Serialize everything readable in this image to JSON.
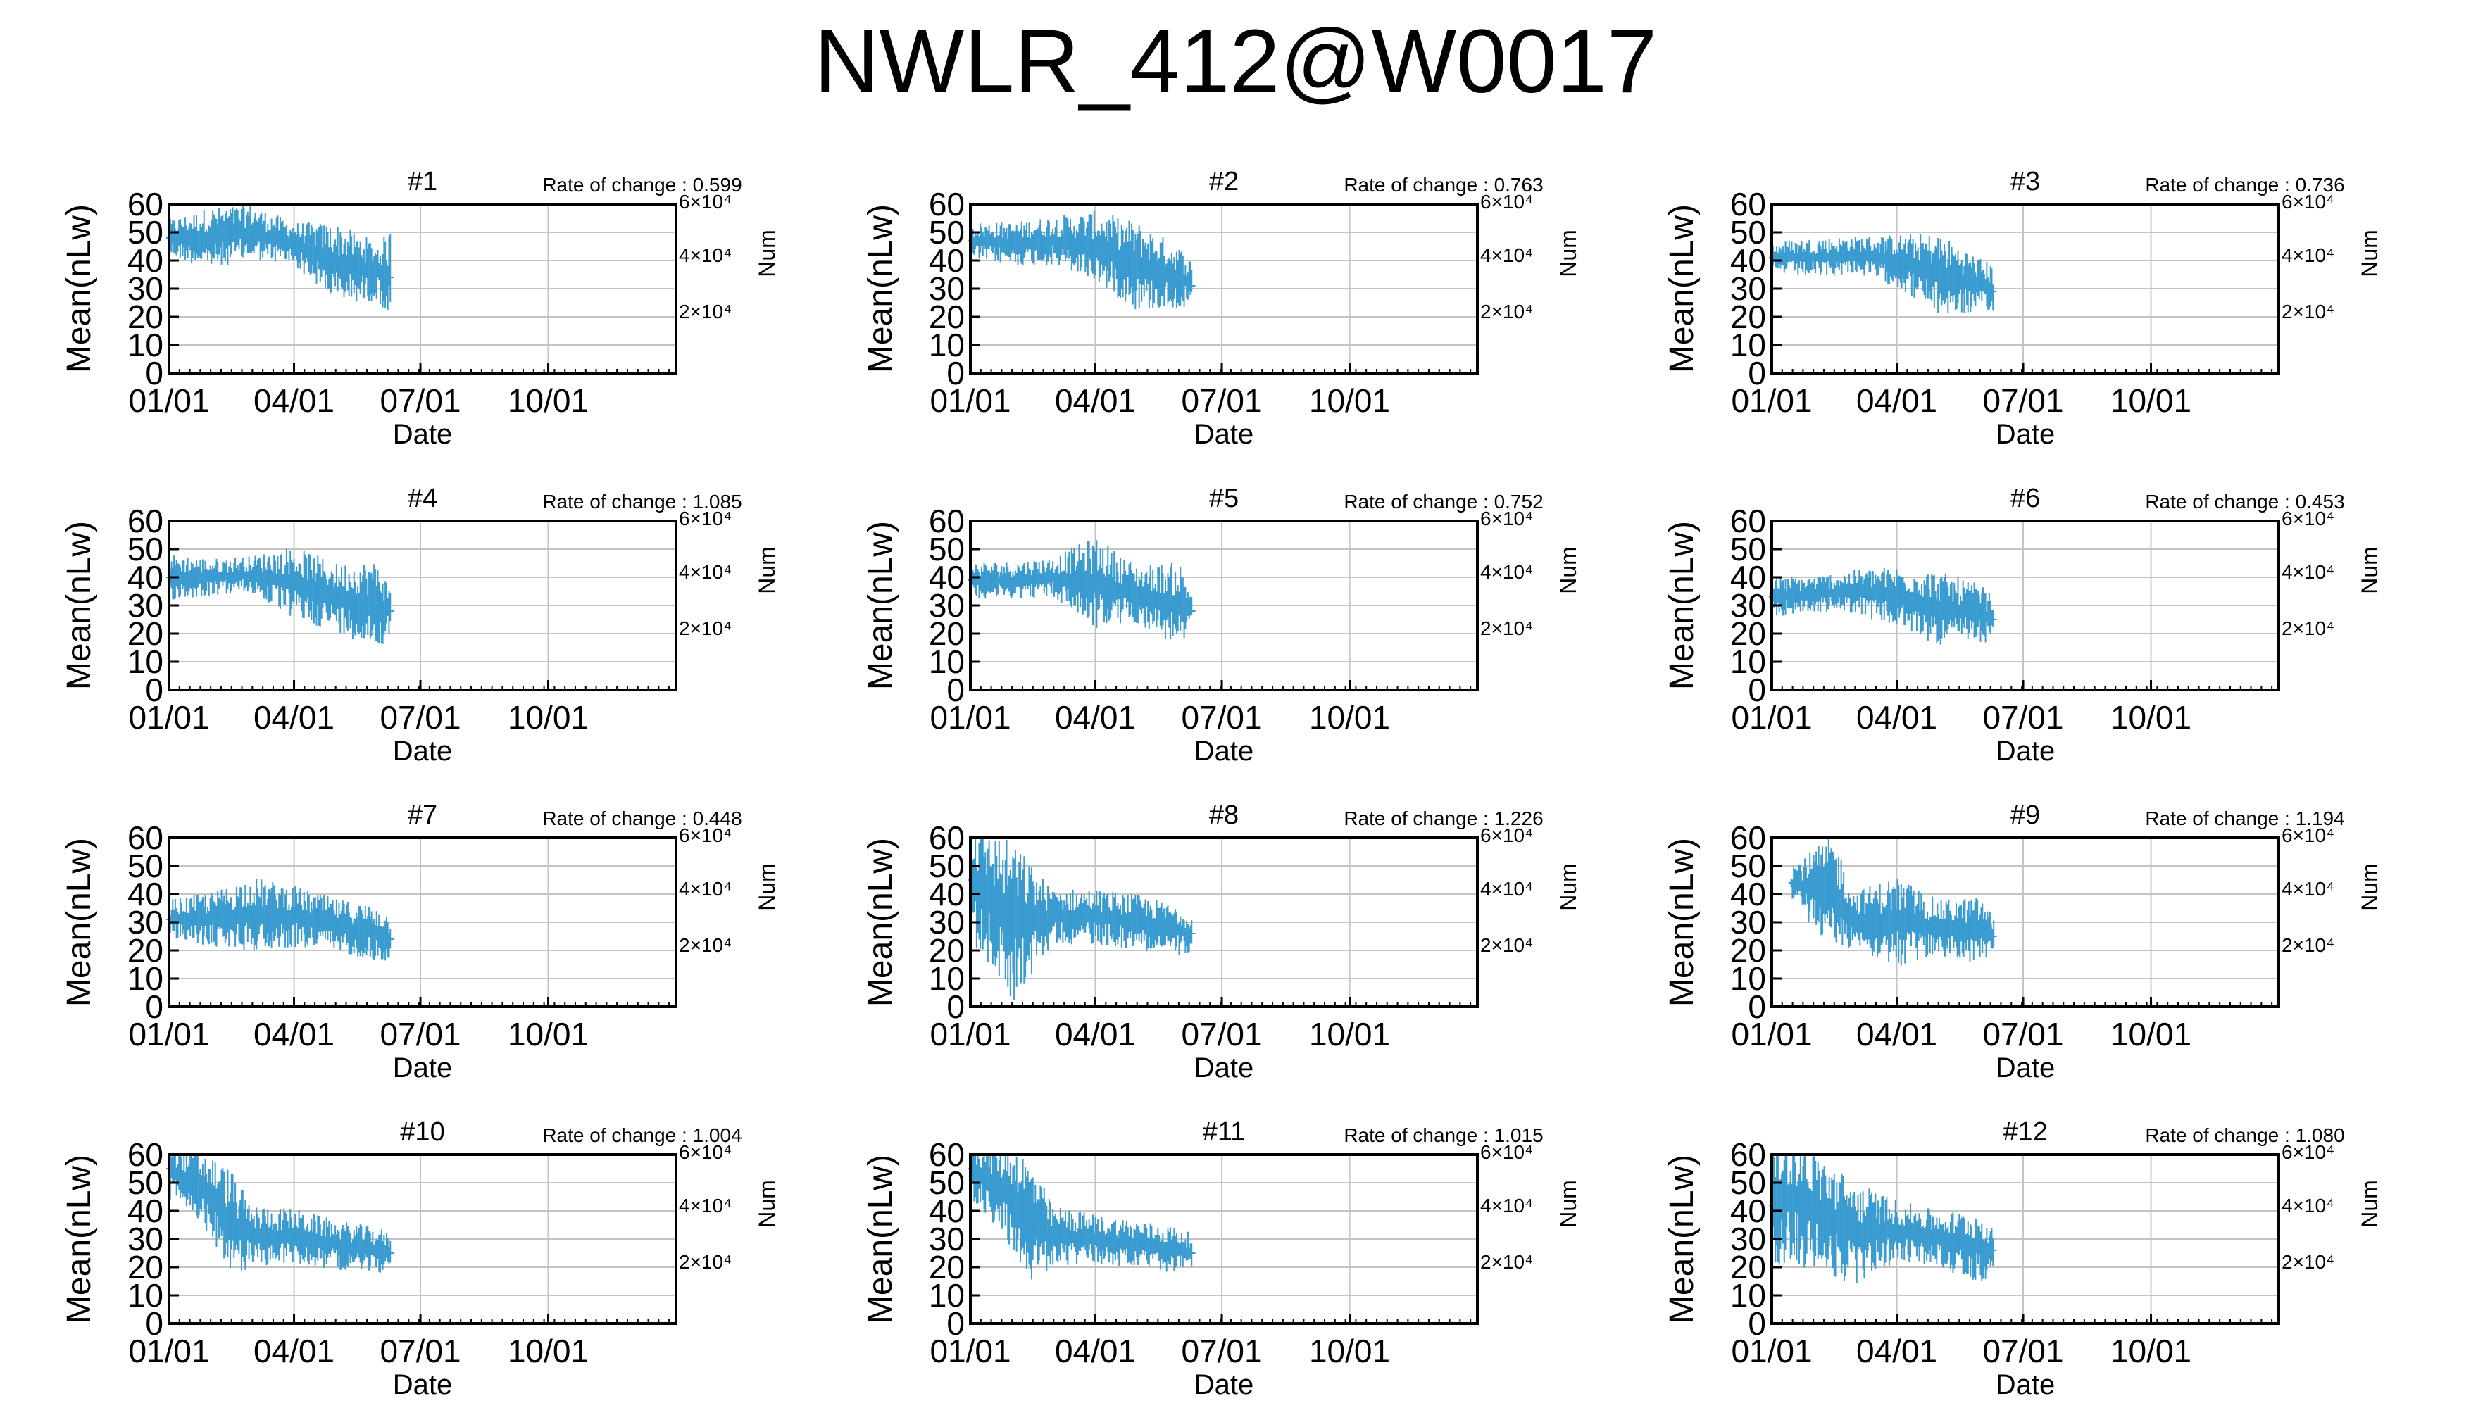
{
  "title": "NWLR_412@W0017",
  "colors": {
    "series": "#3a9bd0",
    "grid": "#c4c4c4",
    "axis": "#000000"
  },
  "chart_data": [
    {
      "type": "line",
      "title": "#1",
      "rate_label": "Rate of change : 0.599",
      "xlabel": "Date",
      "ylabel": "Mean(nLw)",
      "y2label": "Num",
      "xticks": [
        "01/01",
        "04/01",
        "07/01",
        "10/01"
      ],
      "yticks": [
        "0",
        "10",
        "20",
        "30",
        "40",
        "50",
        "60"
      ],
      "y2ticks": [
        "2×10⁴",
        "4×10⁴",
        "6×10⁴"
      ],
      "ylim": [
        0,
        60
      ],
      "grid": true,
      "series": [
        {
          "x": [
            "01/01",
            "02/01",
            "03/01",
            "04/01",
            "05/01",
            "06/01",
            "06/10"
          ],
          "values": [
            48,
            48,
            50,
            46,
            39,
            36,
            34
          ],
          "range": [
            [
              42,
              54
            ],
            [
              38,
              58
            ],
            [
              40,
              58
            ],
            [
              38,
              52
            ],
            [
              20,
              46
            ],
            [
              25,
              44
            ],
            [
              26,
              58
            ]
          ]
        }
      ]
    },
    {
      "type": "line",
      "title": "#2",
      "rate_label": "Rate of change : 0.763",
      "xlabel": "Date",
      "ylabel": "Mean(nLw)",
      "y2label": "Num",
      "xticks": [
        "01/01",
        "04/01",
        "07/01",
        "10/01"
      ],
      "yticks": [
        "0",
        "10",
        "20",
        "30",
        "40",
        "50",
        "60"
      ],
      "y2ticks": [
        "2×10⁴",
        "4×10⁴",
        "6×10⁴"
      ],
      "ylim": [
        0,
        60
      ],
      "grid": true,
      "series": [
        {
          "x": [
            "01/01",
            "02/01",
            "03/01",
            "04/01",
            "05/01",
            "06/01",
            "06/10"
          ],
          "values": [
            47,
            46,
            47,
            45,
            38,
            34,
            31
          ],
          "range": [
            [
              40,
              52
            ],
            [
              38,
              52
            ],
            [
              40,
              56
            ],
            [
              35,
              58
            ],
            [
              15,
              44
            ],
            [
              22,
              42
            ],
            [
              22,
              38
            ]
          ]
        }
      ]
    },
    {
      "type": "line",
      "title": "#3",
      "rate_label": "Rate of change : 0.736",
      "xlabel": "Date",
      "ylabel": "Mean(nLw)",
      "y2label": "Num",
      "xticks": [
        "01/01",
        "04/01",
        "07/01",
        "10/01"
      ],
      "yticks": [
        "0",
        "10",
        "20",
        "30",
        "40",
        "50",
        "60"
      ],
      "y2ticks": [
        "2×10⁴",
        "4×10⁴",
        "6×10⁴"
      ],
      "ylim": [
        0,
        60
      ],
      "grid": true,
      "series": [
        {
          "x": [
            "01/01",
            "02/01",
            "03/01",
            "04/01",
            "05/01",
            "06/01",
            "06/10"
          ],
          "values": [
            41,
            41,
            42,
            40,
            35,
            31,
            29
          ],
          "range": [
            [
              36,
              46
            ],
            [
              34,
              47
            ],
            [
              36,
              48
            ],
            [
              30,
              47
            ],
            [
              15,
              42
            ],
            [
              20,
              38
            ],
            [
              18,
              35
            ]
          ]
        }
      ]
    },
    {
      "type": "line",
      "title": "#4",
      "rate_label": "Rate of change : 1.085",
      "xlabel": "Date",
      "ylabel": "Mean(nLw)",
      "y2label": "Num",
      "xticks": [
        "01/01",
        "04/01",
        "07/01",
        "10/01"
      ],
      "yticks": [
        "0",
        "10",
        "20",
        "30",
        "40",
        "50",
        "60"
      ],
      "y2ticks": [
        "2×10⁴",
        "4×10⁴",
        "6×10⁴"
      ],
      "ylim": [
        0,
        60
      ],
      "grid": true,
      "series": [
        {
          "x": [
            "01/01",
            "02/01",
            "03/01",
            "04/01",
            "05/01",
            "06/01",
            "06/10"
          ],
          "values": [
            40,
            40,
            41,
            38,
            33,
            30,
            28
          ],
          "range": [
            [
              35,
              50
            ],
            [
              34,
              46
            ],
            [
              35,
              47
            ],
            [
              20,
              44
            ],
            [
              20,
              42
            ],
            [
              9,
              38
            ],
            [
              22,
              35
            ]
          ]
        }
      ]
    },
    {
      "type": "line",
      "title": "#5",
      "rate_label": "Rate of change : 0.752",
      "xlabel": "Date",
      "ylabel": "Mean(nLw)",
      "y2label": "Num",
      "xticks": [
        "01/01",
        "04/01",
        "07/01",
        "10/01"
      ],
      "yticks": [
        "0",
        "10",
        "20",
        "30",
        "40",
        "50",
        "60"
      ],
      "y2ticks": [
        "2×10⁴",
        "4×10⁴",
        "6×10⁴"
      ],
      "ylim": [
        0,
        60
      ],
      "grid": true,
      "series": [
        {
          "x": [
            "01/01",
            "02/01",
            "03/01",
            "04/01",
            "05/01",
            "06/01",
            "06/10"
          ],
          "values": [
            39,
            39,
            40,
            38,
            34,
            30,
            28
          ],
          "range": [
            [
              33,
              45
            ],
            [
              34,
              46
            ],
            [
              34,
              47
            ],
            [
              18,
              48
            ],
            [
              25,
              44
            ],
            [
              10,
              38
            ],
            [
              22,
              34
            ]
          ]
        }
      ]
    },
    {
      "type": "line",
      "title": "#6",
      "rate_label": "Rate of change : 0.453",
      "xlabel": "Date",
      "ylabel": "Mean(nLw)",
      "y2label": "Num",
      "xticks": [
        "01/01",
        "04/01",
        "07/01",
        "10/01"
      ],
      "yticks": [
        "0",
        "10",
        "20",
        "30",
        "40",
        "50",
        "60"
      ],
      "y2ticks": [
        "2×10⁴",
        "4×10⁴",
        "6×10⁴"
      ],
      "ylim": [
        0,
        60
      ],
      "grid": true,
      "series": [
        {
          "x": [
            "01/01",
            "02/01",
            "03/01",
            "04/01",
            "05/01",
            "06/01",
            "06/10"
          ],
          "values": [
            33,
            34,
            35,
            33,
            29,
            27,
            25
          ],
          "range": [
            [
              27,
              40
            ],
            [
              28,
              40
            ],
            [
              28,
              42
            ],
            [
              20,
              40
            ],
            [
              14,
              38
            ],
            [
              16,
              35
            ],
            [
              18,
              32
            ]
          ]
        }
      ]
    },
    {
      "type": "line",
      "title": "#7",
      "rate_label": "Rate of change : 0.448",
      "xlabel": "Date",
      "ylabel": "Mean(nLw)",
      "y2label": "Num",
      "xticks": [
        "01/01",
        "04/01",
        "07/01",
        "10/01"
      ],
      "yticks": [
        "0",
        "10",
        "20",
        "30",
        "40",
        "50",
        "60"
      ],
      "y2ticks": [
        "2×10⁴",
        "4×10⁴",
        "6×10⁴"
      ],
      "ylim": [
        0,
        60
      ],
      "grid": true,
      "series": [
        {
          "x": [
            "01/01",
            "02/01",
            "03/01",
            "04/01",
            "05/01",
            "06/01",
            "06/10"
          ],
          "values": [
            31,
            31,
            33,
            32,
            29,
            26,
            24
          ],
          "range": [
            [
              25,
              38
            ],
            [
              22,
              40
            ],
            [
              16,
              40
            ],
            [
              20,
              40
            ],
            [
              20,
              37
            ],
            [
              17,
              35
            ],
            [
              18,
              32
            ]
          ]
        }
      ]
    },
    {
      "type": "line",
      "title": "#8",
      "rate_label": "Rate of change : 1.226",
      "xlabel": "Date",
      "ylabel": "Mean(nLw)",
      "y2label": "Num",
      "xticks": [
        "01/01",
        "04/01",
        "07/01",
        "10/01"
      ],
      "yticks": [
        "0",
        "10",
        "20",
        "30",
        "40",
        "50",
        "60"
      ],
      "y2ticks": [
        "2×10⁴",
        "4×10⁴",
        "6×10⁴"
      ],
      "ylim": [
        0,
        60
      ],
      "grid": true,
      "series": [
        {
          "x": [
            "01/01",
            "01/15",
            "02/01",
            "03/01",
            "04/01",
            "05/01",
            "06/01",
            "06/10"
          ],
          "values": [
            45,
            38,
            30,
            32,
            32,
            30,
            27,
            26
          ],
          "range": [
            [
              20,
              60
            ],
            [
              15,
              60
            ],
            [
              8,
              60
            ],
            [
              22,
              40
            ],
            [
              22,
              40
            ],
            [
              20,
              38
            ],
            [
              19,
              35
            ],
            [
              20,
              32
            ]
          ]
        }
      ]
    },
    {
      "type": "line",
      "title": "#9",
      "rate_label": "Rate of change : 1.194",
      "xlabel": "Date",
      "ylabel": "Mean(nLw)",
      "y2label": "Num",
      "xticks": [
        "01/01",
        "04/01",
        "07/01",
        "10/01"
      ],
      "yticks": [
        "0",
        "10",
        "20",
        "30",
        "40",
        "50",
        "60"
      ],
      "y2ticks": [
        "2×10⁴",
        "4×10⁴",
        "6×10⁴"
      ],
      "ylim": [
        0,
        60
      ],
      "grid": true,
      "series": [
        {
          "x": [
            "01/15",
            "02/15",
            "03/01",
            "04/01",
            "05/01",
            "06/01",
            "06/10"
          ],
          "values": [
            44,
            40,
            31,
            30,
            28,
            27,
            25
          ],
          "range": [
            [
              38,
              50
            ],
            [
              22,
              60
            ],
            [
              22,
              40
            ],
            [
              10,
              40
            ],
            [
              20,
              38
            ],
            [
              18,
              40
            ],
            [
              20,
              32
            ]
          ]
        }
      ]
    },
    {
      "type": "line",
      "title": "#10",
      "rate_label": "Rate of change : 1.004",
      "xlabel": "Date",
      "ylabel": "Mean(nLw)",
      "y2label": "Num",
      "xticks": [
        "01/01",
        "04/01",
        "07/01",
        "10/01"
      ],
      "yticks": [
        "0",
        "10",
        "20",
        "30",
        "40",
        "50",
        "60"
      ],
      "y2ticks": [
        "2×10⁴",
        "4×10⁴",
        "6×10⁴"
      ],
      "ylim": [
        0,
        60
      ],
      "grid": true,
      "series": [
        {
          "x": [
            "01/01",
            "02/01",
            "02/15",
            "03/01",
            "04/01",
            "05/01",
            "06/01",
            "06/10"
          ],
          "values": [
            55,
            45,
            35,
            31,
            31,
            28,
            26,
            25
          ],
          "range": [
            [
              40,
              60
            ],
            [
              34,
              60
            ],
            [
              24,
              60
            ],
            [
              20,
              40
            ],
            [
              22,
              40
            ],
            [
              20,
              36
            ],
            [
              19,
              34
            ],
            [
              20,
              32
            ]
          ]
        }
      ]
    },
    {
      "type": "line",
      "title": "#11",
      "rate_label": "Rate of change : 1.015",
      "xlabel": "Date",
      "ylabel": "Mean(nLw)",
      "y2label": "Num",
      "xticks": [
        "01/01",
        "04/01",
        "07/01",
        "10/01"
      ],
      "yticks": [
        "0",
        "10",
        "20",
        "30",
        "40",
        "50",
        "60"
      ],
      "y2ticks": [
        "2×10⁴",
        "4×10⁴",
        "6×10⁴"
      ],
      "ylim": [
        0,
        60
      ],
      "grid": true,
      "series": [
        {
          "x": [
            "01/01",
            "02/01",
            "02/15",
            "03/01",
            "04/01",
            "05/01",
            "06/01",
            "06/10"
          ],
          "values": [
            55,
            45,
            35,
            31,
            30,
            28,
            26,
            25
          ],
          "range": [
            [
              40,
              60
            ],
            [
              26,
              60
            ],
            [
              20,
              60
            ],
            [
              20,
              40
            ],
            [
              22,
              38
            ],
            [
              20,
              36
            ],
            [
              18,
              33
            ],
            [
              20,
              32
            ]
          ]
        }
      ]
    },
    {
      "type": "line",
      "title": "#12",
      "rate_label": "Rate of change : 1.080",
      "xlabel": "Date",
      "ylabel": "Mean(nLw)",
      "y2label": "Num",
      "xticks": [
        "01/01",
        "04/01",
        "07/01",
        "10/01"
      ],
      "yticks": [
        "0",
        "10",
        "20",
        "30",
        "40",
        "50",
        "60"
      ],
      "y2ticks": [
        "2×10⁴",
        "4×10⁴",
        "6×10⁴"
      ],
      "ylim": [
        0,
        60
      ],
      "grid": true,
      "series": [
        {
          "x": [
            "01/01",
            "01/15",
            "02/01",
            "03/01",
            "04/01",
            "05/01",
            "06/01",
            "06/10"
          ],
          "values": [
            42,
            45,
            40,
            32,
            33,
            30,
            27,
            26
          ],
          "range": [
            [
              20,
              60
            ],
            [
              18,
              60
            ],
            [
              20,
              60
            ],
            [
              12,
              46
            ],
            [
              22,
              42
            ],
            [
              20,
              38
            ],
            [
              18,
              42
            ],
            [
              20,
              32
            ]
          ]
        }
      ]
    }
  ]
}
